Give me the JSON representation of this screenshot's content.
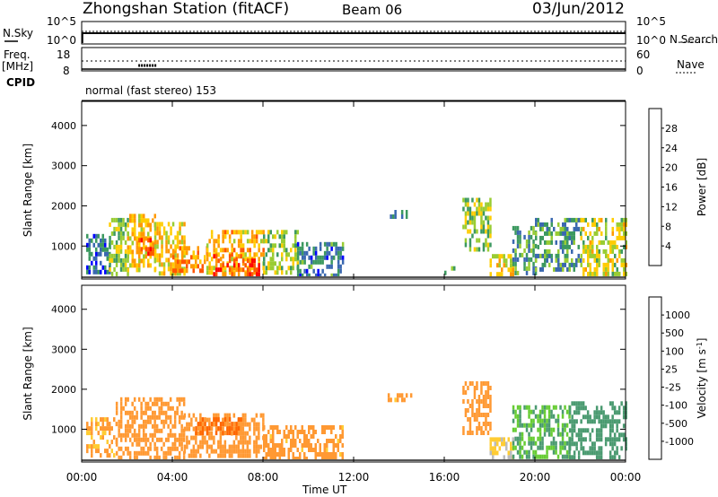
{
  "header": {
    "station": "Zhongshan Station (fitACF)",
    "beam": "Beam 06",
    "date": "03/Jun/2012"
  },
  "top_panels": {
    "nsky_label": "N.Sky",
    "nsearch_label": "N.Search",
    "freq_label": "Freq.",
    "freq_unit": "[MHz]",
    "nave_label": "Nave",
    "cpid_label": "CPID",
    "cpid_value": "normal (fast stereo) 153",
    "noise_ticks_left": [
      "10^5",
      "10^0"
    ],
    "noise_ticks_right": [
      "10^5",
      "10^0"
    ],
    "freq_ticks": [
      "18",
      "8"
    ],
    "nave_ticks": [
      "60",
      "0"
    ]
  },
  "x_axis": {
    "label": "Time UT",
    "ticks": [
      "00:00",
      "04:00",
      "08:00",
      "12:00",
      "16:00",
      "20:00",
      "00:00"
    ]
  },
  "panels": [
    {
      "ylabel": "Slant Range [km]",
      "yticks": [
        "4000",
        "3000",
        "2000",
        "1000"
      ]
    },
    {
      "ylabel": "Slant Range [km]",
      "yticks": [
        "4000",
        "3000",
        "2000",
        "1000"
      ]
    }
  ],
  "colorbars": {
    "power": {
      "label": "Power [dB]",
      "ticks": [
        "28",
        "24",
        "20",
        "16",
        "12",
        "8",
        "4"
      ],
      "colors": [
        "#ff0000",
        "#ff5500",
        "#ff9900",
        "#ffcc00",
        "#99cc33",
        "#3c9960",
        "#3a68b0",
        "#0000ff"
      ]
    },
    "velocity": {
      "label": "Velocity [m s",
      "label_sup": "-1",
      "label_end": "]",
      "ticks": [
        "1000",
        "500",
        "100",
        "25",
        "-25",
        "-100",
        "-500",
        "-1000"
      ],
      "colors": [
        "#2a50c0",
        "#3a7aa0",
        "#4a9a70",
        "#66cc33",
        "#bbbbbb",
        "#ffcc33",
        "#ff9933",
        "#ff6600",
        "#ff0000"
      ]
    }
  },
  "chart_data": [
    {
      "type": "heatmap",
      "title": "Power",
      "xlabel": "Time UT",
      "ylabel": "Slant Range [km]",
      "xlim": [
        "00:00",
        "24:00"
      ],
      "ylim": [
        180,
        4600
      ],
      "colorbar": "Power [dB]",
      "clim": [
        0,
        32
      ],
      "patches": [
        {
          "t": [
            0.2,
            1.2
          ],
          "r": [
            300,
            1300
          ],
          "v": 7
        },
        {
          "t": [
            1.2,
            2.0
          ],
          "r": [
            300,
            1700
          ],
          "v": 13
        },
        {
          "t": [
            2.0,
            3.2
          ],
          "r": [
            400,
            1800
          ],
          "v": 19
        },
        {
          "t": [
            2.5,
            3.2
          ],
          "r": [
            800,
            1200
          ],
          "v": 26
        },
        {
          "t": [
            3.2,
            4.5
          ],
          "r": [
            300,
            1600
          ],
          "v": 18
        },
        {
          "t": [
            4.0,
            5.5
          ],
          "r": [
            350,
            1000
          ],
          "v": 23
        },
        {
          "t": [
            5.5,
            8.0
          ],
          "r": [
            300,
            1400
          ],
          "v": 20
        },
        {
          "t": [
            5.8,
            7.8
          ],
          "r": [
            350,
            800
          ],
          "v": 27
        },
        {
          "t": [
            8.0,
            9.5
          ],
          "r": [
            300,
            1400
          ],
          "v": 14
        },
        {
          "t": [
            9.5,
            11.5
          ],
          "r": [
            300,
            1100
          ],
          "v": 8
        },
        {
          "t": [
            13.5,
            14.5
          ],
          "r": [
            1700,
            1900
          ],
          "v": 9
        },
        {
          "t": [
            16.0,
            16.5
          ],
          "r": [
            300,
            500
          ],
          "v": 9
        },
        {
          "t": [
            16.8,
            18.0
          ],
          "r": [
            900,
            2200
          ],
          "v": 14
        },
        {
          "t": [
            18.0,
            19.0
          ],
          "r": [
            300,
            800
          ],
          "v": 17
        },
        {
          "t": [
            19.0,
            20.0
          ],
          "r": [
            300,
            1500
          ],
          "v": 10
        },
        {
          "t": [
            20.0,
            22.0
          ],
          "r": [
            400,
            1700
          ],
          "v": 9
        },
        {
          "t": [
            22.0,
            24.0
          ],
          "r": [
            350,
            1700
          ],
          "v": 16
        }
      ]
    },
    {
      "type": "heatmap",
      "title": "Velocity",
      "xlabel": "Time UT",
      "ylabel": "Slant Range [km]",
      "xlim": [
        "00:00",
        "24:00"
      ],
      "ylim": [
        180,
        4600
      ],
      "colorbar": "Velocity [m s-1]",
      "patches": [
        {
          "t": [
            0.2,
            1.5
          ],
          "r": [
            300,
            1300
          ],
          "v": -150
        },
        {
          "t": [
            1.5,
            4.5
          ],
          "r": [
            300,
            1800
          ],
          "v": -300
        },
        {
          "t": [
            4.5,
            8.0
          ],
          "r": [
            300,
            1400
          ],
          "v": -250
        },
        {
          "t": [
            5.0,
            7.0
          ],
          "r": [
            900,
            1300
          ],
          "v": -600
        },
        {
          "t": [
            8.0,
            11.5
          ],
          "r": [
            300,
            1100
          ],
          "v": -200
        },
        {
          "t": [
            13.5,
            14.5
          ],
          "r": [
            1700,
            1900
          ],
          "v": -200
        },
        {
          "t": [
            16.8,
            18.0
          ],
          "r": [
            900,
            2200
          ],
          "v": -250
        },
        {
          "t": [
            18.0,
            19.0
          ],
          "r": [
            300,
            800
          ],
          "v": -40
        },
        {
          "t": [
            19.0,
            21.5
          ],
          "r": [
            300,
            1600
          ],
          "v": 100
        },
        {
          "t": [
            21.5,
            24.0
          ],
          "r": [
            350,
            1700
          ],
          "v": 300
        }
      ]
    }
  ]
}
